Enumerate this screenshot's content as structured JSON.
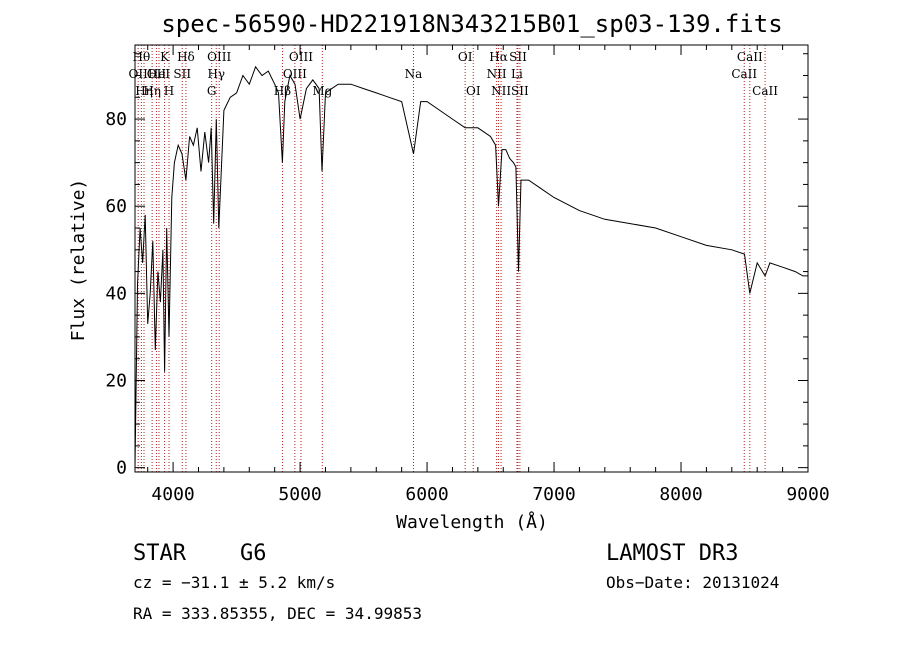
{
  "chart_data": {
    "type": "line",
    "title": "spec-56590-HD221918N343215B01_sp03-139.fits",
    "xlabel": "Wavelength (Å)",
    "ylabel": "Flux (relative)",
    "xlim": [
      3700,
      9000
    ],
    "ylim": [
      -1,
      97
    ],
    "xticks": [
      4000,
      5000,
      6000,
      7000,
      8000,
      9000
    ],
    "yticks": [
      0,
      20,
      40,
      60,
      80
    ],
    "series": [
      {
        "name": "flux",
        "x": [
          3700,
          3720,
          3740,
          3760,
          3780,
          3800,
          3820,
          3840,
          3860,
          3880,
          3900,
          3920,
          3933,
          3950,
          3968,
          3990,
          4010,
          4040,
          4070,
          4101,
          4130,
          4160,
          4190,
          4220,
          4250,
          4280,
          4300,
          4320,
          4340,
          4360,
          4400,
          4450,
          4500,
          4550,
          4600,
          4650,
          4700,
          4750,
          4800,
          4830,
          4861,
          4880,
          4920,
          4960,
          5000,
          5050,
          5100,
          5150,
          5173,
          5200,
          5250,
          5300,
          5400,
          5500,
          5600,
          5700,
          5800,
          5893,
          5950,
          6000,
          6100,
          6200,
          6300,
          6400,
          6500,
          6540,
          6563,
          6590,
          6620,
          6650,
          6680,
          6700,
          6720,
          6740,
          6800,
          6900,
          7000,
          7200,
          7400,
          7600,
          7800,
          8000,
          8200,
          8400,
          8500,
          8542,
          8600,
          8662,
          8700,
          8800,
          8900,
          8960,
          9000
        ],
        "y": [
          0,
          42,
          55,
          47,
          58,
          33,
          40,
          52,
          27,
          45,
          38,
          50,
          22,
          55,
          30,
          62,
          70,
          74,
          72,
          66,
          76,
          74,
          78,
          68,
          77,
          70,
          78,
          56,
          80,
          55,
          82,
          85,
          86,
          90,
          88,
          92,
          90,
          91,
          88,
          86,
          70,
          84,
          90,
          88,
          80,
          87,
          89,
          87,
          68,
          86,
          87,
          88,
          88,
          87,
          86,
          85,
          84,
          72,
          84,
          84,
          82,
          80,
          78,
          78,
          76,
          74,
          60,
          73,
          73,
          71,
          70,
          69,
          45,
          66,
          66,
          64,
          62,
          59,
          57,
          56,
          55,
          53,
          51,
          50,
          49,
          40,
          47,
          44,
          47,
          46,
          45,
          44,
          44
        ]
      }
    ],
    "lines": [
      {
        "wave": 3725,
        "label": "OII",
        "row": 2
      },
      {
        "wave": 3750,
        "label": "Hθ",
        "row": 1
      },
      {
        "wave": 3771,
        "label": "Hη",
        "row": 3
      },
      {
        "wave": 3835,
        "label": "Hη",
        "row": 3
      },
      {
        "wave": 3869,
        "label": "OII",
        "row": 2
      },
      {
        "wave": 3889,
        "label": "HeI",
        "row": 2
      },
      {
        "wave": 3933,
        "label": "K",
        "row": 1
      },
      {
        "wave": 3968,
        "label": "H",
        "row": 3
      },
      {
        "wave": 4072,
        "label": "SII",
        "row": 2
      },
      {
        "wave": 4101,
        "label": "Hδ",
        "row": 1
      },
      {
        "wave": 4304,
        "label": "G",
        "row": 3
      },
      {
        "wave": 4340,
        "label": "Hγ",
        "row": 2
      },
      {
        "wave": 4363,
        "label": "OIII",
        "row": 1
      },
      {
        "wave": 4861,
        "label": "Hβ",
        "row": 3
      },
      {
        "wave": 4959,
        "label": "OIII",
        "row": 2
      },
      {
        "wave": 5007,
        "label": "OIII",
        "row": 1
      },
      {
        "wave": 5175,
        "label": "Mg",
        "row": 3
      },
      {
        "wave": 5893,
        "label": "Na",
        "row": 2
      },
      {
        "wave": 6300,
        "label": "OI",
        "row": 1
      },
      {
        "wave": 6364,
        "label": "OI",
        "row": 3
      },
      {
        "wave": 6548,
        "label": "NII",
        "row": 2
      },
      {
        "wave": 6563,
        "label": "Hα",
        "row": 1
      },
      {
        "wave": 6583,
        "label": "NII",
        "row": 3
      },
      {
        "wave": 6708,
        "label": "Li",
        "row": 2
      },
      {
        "wave": 6716,
        "label": "SII",
        "row": 1
      },
      {
        "wave": 6731,
        "label": "SII",
        "row": 3
      },
      {
        "wave": 8498,
        "label": "CaII",
        "row": 2
      },
      {
        "wave": 8542,
        "label": "CaII",
        "row": 1
      },
      {
        "wave": 8662,
        "label": "CaII",
        "row": 3
      }
    ]
  },
  "info": {
    "object_type": "STAR",
    "subclass": "G6",
    "survey": "LAMOST DR3",
    "redshift_text": "cz = −31.1 ± 5.2 km/s",
    "obs_date_text": "Obs−Date: 20131024",
    "coords_text": "RA = 333.85355, DEC =  34.99853"
  },
  "colors": {
    "spectrum": "#000000",
    "line_marker": "#b22222",
    "axis": "#000000"
  }
}
